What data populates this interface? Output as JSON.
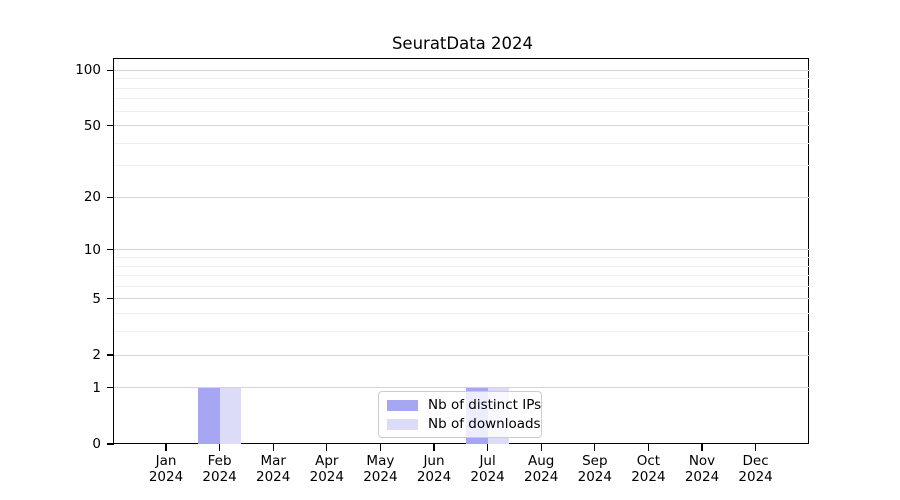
{
  "chart_data": {
    "type": "bar",
    "title": "SeuratData 2024",
    "categories": [
      "Jan",
      "Feb",
      "Mar",
      "Apr",
      "May",
      "Jun",
      "Jul",
      "Aug",
      "Sep",
      "Oct",
      "Nov",
      "Dec"
    ],
    "year_label": "2024",
    "x_tick_labels": [
      "Jan 2024",
      "Feb 2024",
      "Mar 2024",
      "Apr 2024",
      "May 2024",
      "Jun 2024",
      "Jul 2024",
      "Aug 2024",
      "Sep 2024",
      "Oct 2024",
      "Nov 2024",
      "Dec 2024"
    ],
    "series": [
      {
        "name": "Nb of distinct IPs",
        "color": "#a6a6f2",
        "values": [
          0,
          1,
          0,
          0,
          0,
          0,
          1,
          0,
          0,
          0,
          0,
          0
        ]
      },
      {
        "name": "Nb of downloads",
        "color": "#dcdcf8",
        "values": [
          0,
          1,
          0,
          0,
          0,
          0,
          1,
          0,
          0,
          0,
          0,
          0
        ]
      }
    ],
    "yscale": "log1p",
    "ylim": [
      0,
      115
    ],
    "y_major_ticks": [
      0,
      1,
      2,
      5,
      10,
      20,
      50,
      100
    ],
    "y_minor_gridlines": [
      3,
      4,
      6,
      7,
      8,
      9,
      30,
      40,
      60,
      70,
      80,
      90
    ],
    "grid": "horizontal",
    "legend_position": "lower center inside"
  },
  "colors": {
    "major_grid": "#d4d4d4",
    "minor_grid": "#efefef",
    "spine": "#000000",
    "background": "#ffffff",
    "legend_border": "#cccccc",
    "legend_background": "rgba(255,255,255,0.8)",
    "text": "#000000"
  }
}
